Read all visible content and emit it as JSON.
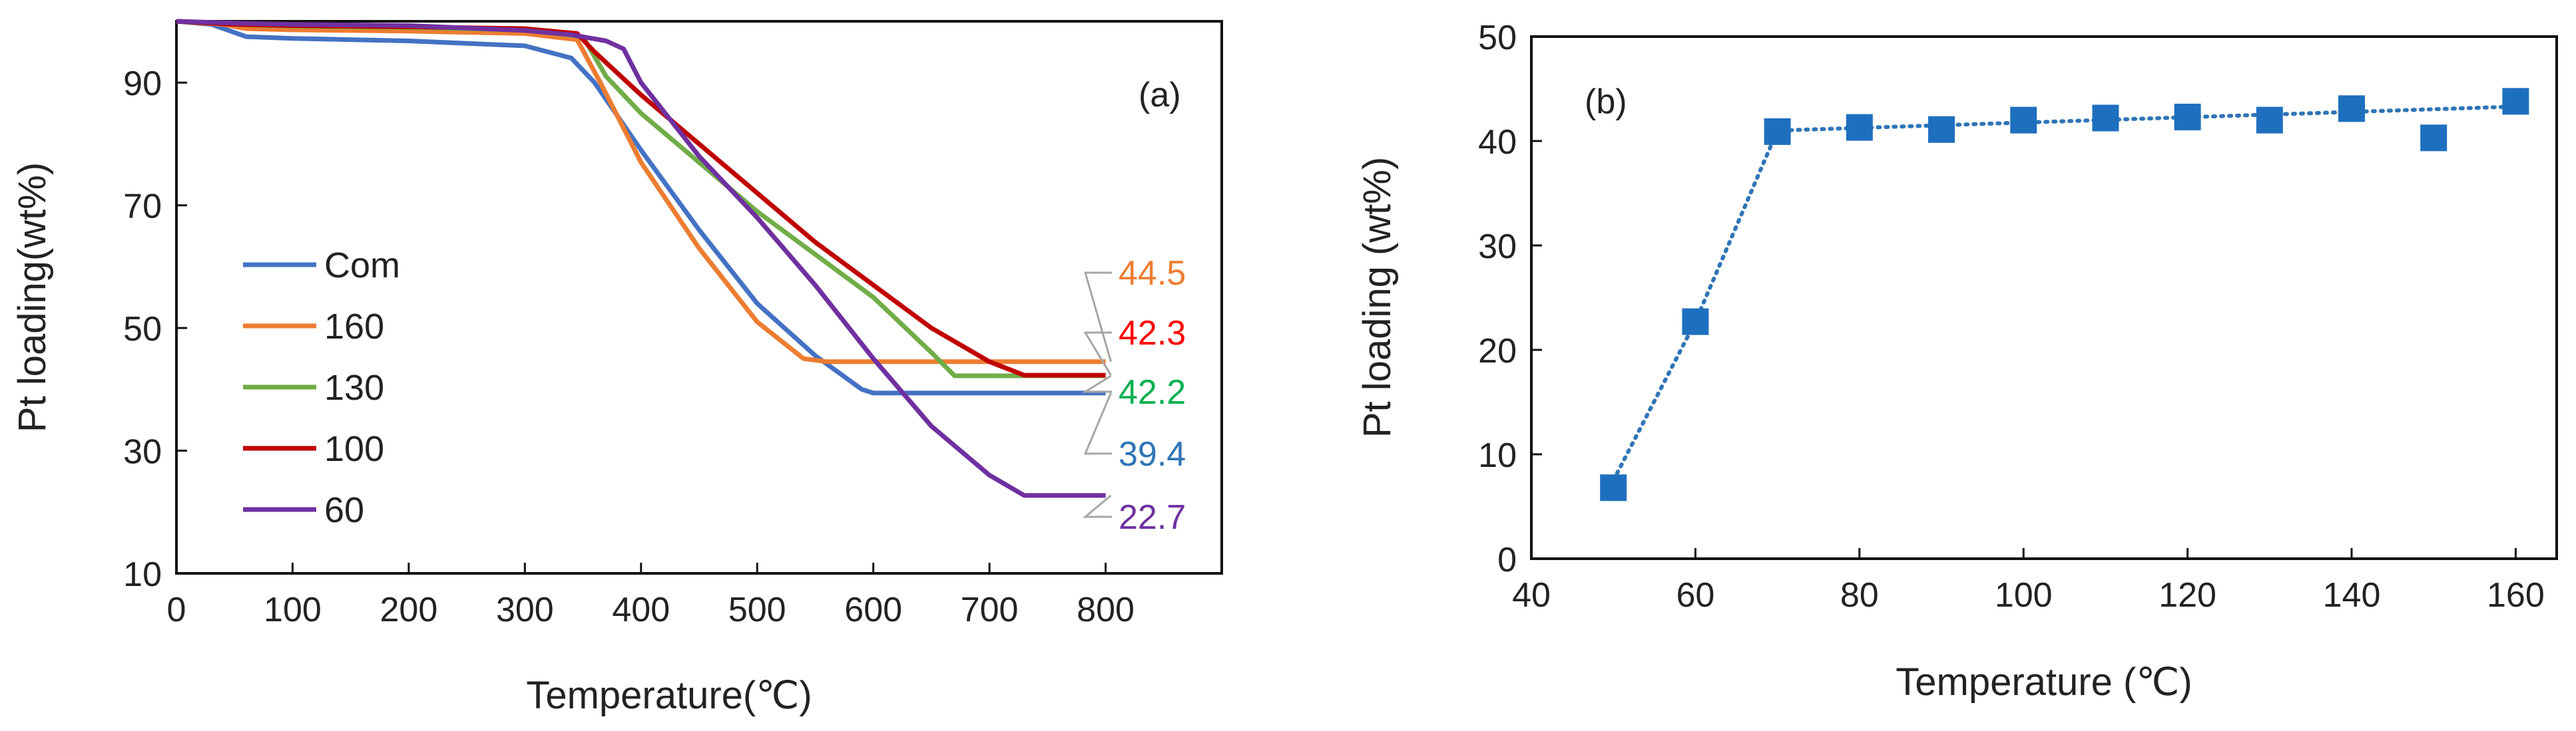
{
  "chart_data": [
    {
      "type": "line",
      "panel_label": "(a)",
      "xlabel": "Temperature(℃)",
      "ylabel": "Pt loading(wt%)",
      "xlim": [
        0,
        900
      ],
      "ylim": [
        10,
        100
      ],
      "x_ticks": [
        "0",
        "100",
        "200",
        "300",
        "400",
        "500",
        "600",
        "700",
        "800"
      ],
      "y_ticks": [
        "10",
        "30",
        "50",
        "70",
        "90"
      ],
      "grid": false,
      "legend_position": "left",
      "series": [
        {
          "name": "Com",
          "color": "#4472C4",
          "points": [
            [
              0,
              100
            ],
            [
              30,
              99.5
            ],
            [
              60,
              97.5
            ],
            [
              100,
              97.2
            ],
            [
              200,
              96.8
            ],
            [
              300,
              96
            ],
            [
              340,
              94
            ],
            [
              360,
              90
            ],
            [
              400,
              79
            ],
            [
              450,
              66
            ],
            [
              500,
              54
            ],
            [
              550,
              45.5
            ],
            [
              590,
              40
            ],
            [
              600,
              39.4
            ],
            [
              700,
              39.4
            ],
            [
              800,
              39.4
            ]
          ]
        },
        {
          "name": "160",
          "color": "#ED7D31",
          "points": [
            [
              0,
              100
            ],
            [
              40,
              99.5
            ],
            [
              60,
              98.8
            ],
            [
              100,
              98.6
            ],
            [
              200,
              98.4
            ],
            [
              300,
              98
            ],
            [
              345,
              97
            ],
            [
              365,
              90
            ],
            [
              400,
              77
            ],
            [
              450,
              63
            ],
            [
              500,
              51
            ],
            [
              540,
              45
            ],
            [
              560,
              44.5
            ],
            [
              700,
              44.5
            ],
            [
              800,
              44.5
            ]
          ]
        },
        {
          "name": "130",
          "color": "#70AD47",
          "points": [
            [
              0,
              100
            ],
            [
              50,
              99.5
            ],
            [
              100,
              99.2
            ],
            [
              200,
              99
            ],
            [
              300,
              98.6
            ],
            [
              350,
              97.5
            ],
            [
              370,
              91
            ],
            [
              400,
              85
            ],
            [
              450,
              77
            ],
            [
              500,
              69
            ],
            [
              550,
              62
            ],
            [
              600,
              55
            ],
            [
              650,
              46
            ],
            [
              670,
              42.2
            ],
            [
              700,
              42.2
            ],
            [
              800,
              42.2
            ]
          ]
        },
        {
          "name": "100",
          "color": "#C00000",
          "points": [
            [
              0,
              100
            ],
            [
              50,
              99.5
            ],
            [
              100,
              99.3
            ],
            [
              200,
              99.1
            ],
            [
              300,
              98.8
            ],
            [
              345,
              98
            ],
            [
              360,
              95
            ],
            [
              400,
              88
            ],
            [
              450,
              80
            ],
            [
              500,
              72
            ],
            [
              550,
              64
            ],
            [
              600,
              57
            ],
            [
              650,
              50
            ],
            [
              700,
              44.5
            ],
            [
              730,
              42.3
            ],
            [
              800,
              42.3
            ]
          ]
        },
        {
          "name": "60",
          "color": "#7030A0",
          "points": [
            [
              0,
              100
            ],
            [
              50,
              99.7
            ],
            [
              100,
              99.5
            ],
            [
              200,
              99.3
            ],
            [
              300,
              98.5
            ],
            [
              340,
              97.8
            ],
            [
              370,
              96.8
            ],
            [
              385,
              95.5
            ],
            [
              400,
              90
            ],
            [
              450,
              78
            ],
            [
              500,
              68
            ],
            [
              550,
              57
            ],
            [
              600,
              45
            ],
            [
              650,
              34
            ],
            [
              700,
              26
            ],
            [
              730,
              22.7
            ],
            [
              800,
              22.7
            ]
          ]
        }
      ],
      "annotations": [
        {
          "text": "44.5",
          "color": "#ED7D31",
          "series": "160"
        },
        {
          "text": "42.3",
          "color": "#FF0000",
          "series": "100"
        },
        {
          "text": "42.2",
          "color": "#00B050",
          "series": "130"
        },
        {
          "text": "39.4",
          "color": "#2E75B6",
          "series": "Com"
        },
        {
          "text": "22.7",
          "color": "#7030A0",
          "series": "60"
        }
      ]
    },
    {
      "type": "scatter",
      "panel_label": "(b)",
      "xlabel": "Temperature (℃)",
      "ylabel": "Pt loading (wt%)",
      "xlim": [
        40,
        165
      ],
      "ylim": [
        0,
        50
      ],
      "x_ticks": [
        "40",
        "60",
        "80",
        "100",
        "120",
        "140",
        "160"
      ],
      "y_ticks": [
        "0",
        "10",
        "20",
        "30",
        "40",
        "50"
      ],
      "grid": false,
      "marker_color": "#1F6FBF",
      "x": [
        50,
        60,
        70,
        80,
        90,
        100,
        110,
        120,
        130,
        140,
        150,
        160
      ],
      "y": [
        6.8,
        22.7,
        40.9,
        41.3,
        41.1,
        42,
        42.2,
        42.3,
        42,
        43.1,
        40.3,
        43.8
      ],
      "trend_line": {
        "style": "dotted",
        "x": [
          50,
          60,
          70,
          160
        ],
        "y": [
          7.5,
          22.7,
          41,
          43.3
        ]
      }
    }
  ]
}
